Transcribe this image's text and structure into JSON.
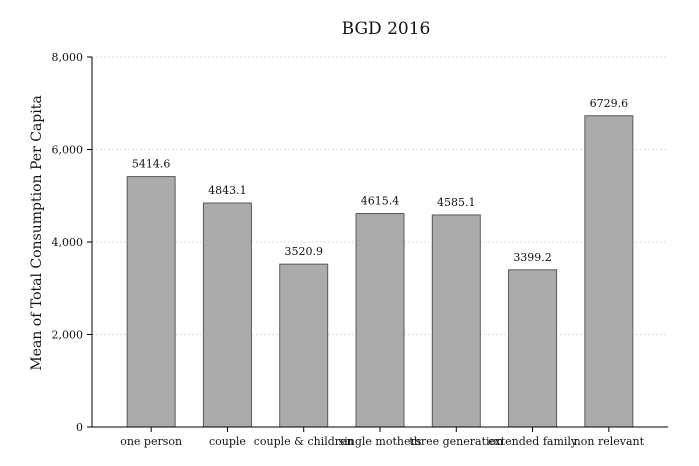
{
  "chart_data": {
    "type": "bar",
    "title": "BGD 2016",
    "xlabel": "",
    "ylabel": "Mean of Total Consumption Per Capita",
    "categories": [
      "one person",
      "couple",
      "couple & children",
      "single mothers",
      "three generation",
      "extended family",
      "non relevant"
    ],
    "values": [
      5414.6,
      4843.1,
      3520.9,
      4615.4,
      4585.1,
      3399.2,
      6729.6
    ],
    "data_labels": [
      "5414.6",
      "4843.1",
      "3520.9",
      "4615.4",
      "4585.1",
      "3399.2",
      "6729.6"
    ],
    "ylim": [
      0,
      8000
    ],
    "yticks": [
      0,
      2000,
      4000,
      6000,
      8000
    ],
    "ytick_labels": [
      "0",
      "2,000",
      "4,000",
      "6,000",
      "8,000"
    ],
    "grid": true,
    "legend": "none",
    "colors": {
      "bar_fill": "#ababab",
      "bar_stroke": "#595959",
      "grid": "#dddddd",
      "axis": "#000000"
    }
  }
}
